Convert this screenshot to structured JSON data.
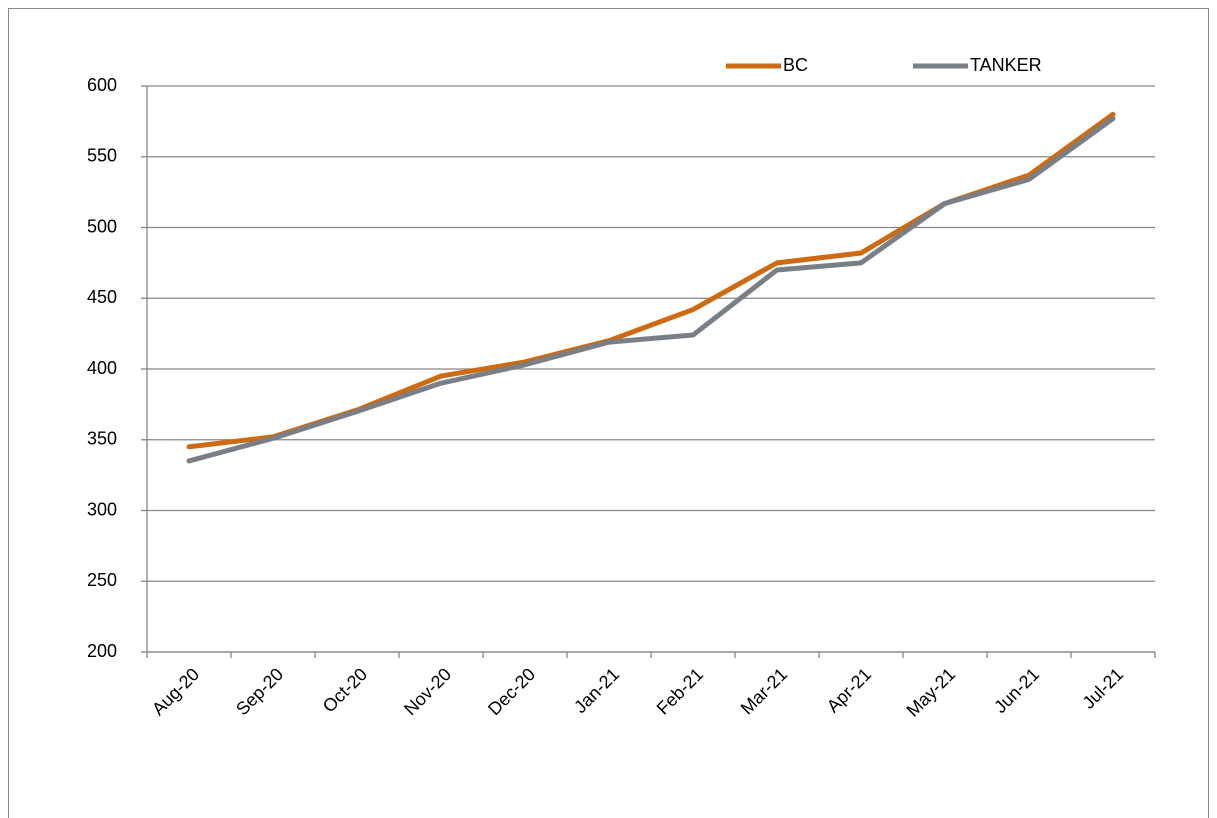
{
  "chart_data": {
    "type": "line",
    "categories": [
      "Aug-20",
      "Sep-20",
      "Oct-20",
      "Nov-20",
      "Dec-20",
      "Jan-21",
      "Feb-21",
      "Mar-21",
      "Apr-21",
      "May-21",
      "Jun-21",
      "Jul-21"
    ],
    "series": [
      {
        "name": "BC",
        "color": "#cd6a12",
        "values": [
          345,
          352,
          371,
          395,
          405,
          420,
          442,
          475,
          482,
          517,
          537,
          580
        ]
      },
      {
        "name": "TANKER",
        "color": "#7a7f86",
        "values": [
          335,
          351,
          370,
          390,
          403,
          419,
          424,
          470,
          475,
          517,
          534,
          577
        ]
      }
    ],
    "ylim": [
      200,
      600
    ],
    "yticks": [
      200,
      250,
      300,
      350,
      400,
      450,
      500,
      550,
      600
    ],
    "grid": true,
    "legend": "top-right"
  }
}
